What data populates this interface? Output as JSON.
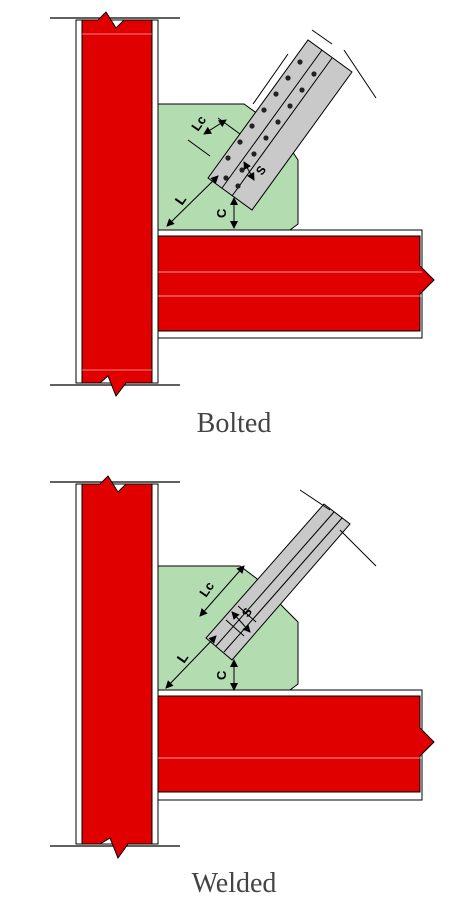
{
  "colors": {
    "steel_member": "#e00000",
    "gusset_plate": "#b3dcb0",
    "brace_angle": "#c9c9c9",
    "outline": "#000000"
  },
  "details": [
    {
      "caption": "Bolted",
      "labels": {
        "lc": "Lc",
        "s": "S",
        "l": "L",
        "c": "C"
      }
    },
    {
      "caption": "Welded",
      "labels": {
        "lc": "Lc",
        "s": "S",
        "l": "L",
        "c": "C"
      }
    }
  ]
}
